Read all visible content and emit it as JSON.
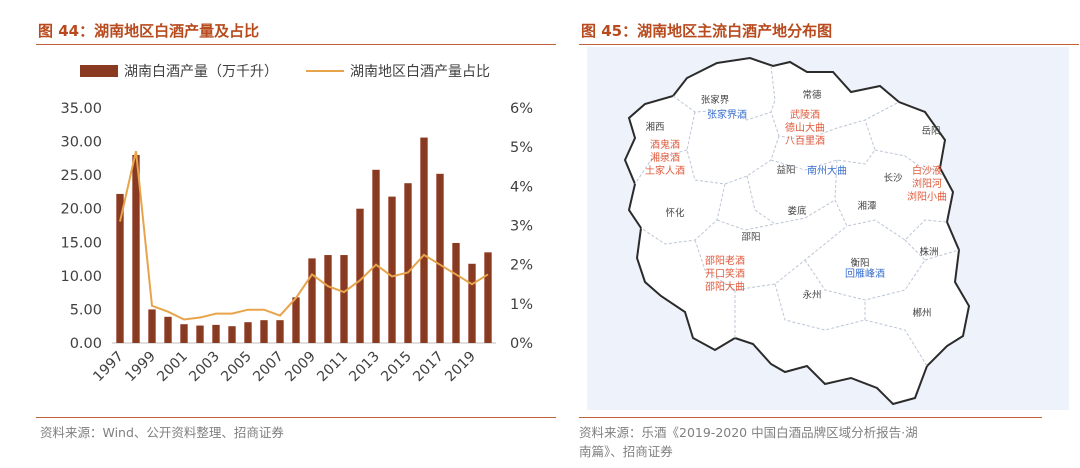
{
  "left_panel": {
    "title": "图 44：湖南地区白酒产量及占比",
    "source": "资料来源：Wind、公开资料整理、招商证券"
  },
  "right_panel": {
    "title": "图 45：湖南地区主流白酒产地分布图",
    "source_line1": "资料来源：乐酒《2019-2020 中国白酒品牌区域分析报告·湖",
    "source_line2": "南篇》、招商证券",
    "map": {
      "places": [
        {
          "name": "张家界",
          "brands": [
            "张家界酒"
          ]
        },
        {
          "name": "常德",
          "brands": [
            "武陵酒",
            "德山大曲",
            "八百里酒"
          ]
        },
        {
          "name": "湘西",
          "brands": [
            "酒鬼酒",
            "湘泉酒",
            "土家人酒"
          ]
        },
        {
          "name": "岳阳",
          "brands": []
        },
        {
          "name": "益阳",
          "brands": [
            "南州大曲"
          ]
        },
        {
          "name": "长沙",
          "brands": [
            "白沙液",
            "浏阳河",
            "浏阳小曲"
          ]
        },
        {
          "name": "怀化",
          "brands": []
        },
        {
          "name": "娄底",
          "brands": []
        },
        {
          "name": "湘潭",
          "brands": []
        },
        {
          "name": "邵阳",
          "brands": [
            "邵阳老酒",
            "开口笑酒",
            "邵阳大曲"
          ]
        },
        {
          "name": "株洲",
          "brands": []
        },
        {
          "name": "衡阳",
          "brands": [
            "回雁峰酒"
          ]
        },
        {
          "name": "永州",
          "brands": []
        },
        {
          "name": "郴州",
          "brands": []
        }
      ],
      "colors": {
        "red_brand": "#e05a3c",
        "blue_brand": "#3a6fd0",
        "place": "#444444"
      }
    }
  },
  "chart_data": {
    "type": "bar",
    "categories": [
      "1997",
      "1998",
      "1999",
      "2000",
      "2001",
      "2002",
      "2003",
      "2004",
      "2005",
      "2006",
      "2007",
      "2008",
      "2009",
      "2010",
      "2011",
      "2012",
      "2013",
      "2014",
      "2015",
      "2016",
      "2017",
      "2018",
      "2019",
      "2020"
    ],
    "x_tick_labels": [
      "1997",
      "1999",
      "2001",
      "2003",
      "2005",
      "2007",
      "2009",
      "2011",
      "2013",
      "2015",
      "2017",
      "2019"
    ],
    "series": [
      {
        "name": "湖南白酒产量（万千升）",
        "type": "bar",
        "axis": "left",
        "color": "#8b3a22",
        "values": [
          22.2,
          28.0,
          5.0,
          3.9,
          2.8,
          2.6,
          2.7,
          2.5,
          3.1,
          3.4,
          3.4,
          6.8,
          12.6,
          13.1,
          13.1,
          20.0,
          25.8,
          21.8,
          23.8,
          30.6,
          25.2,
          14.9,
          11.8,
          13.5
        ]
      },
      {
        "name": "湖南地区白酒产量占比",
        "type": "line",
        "axis": "right",
        "color": "#e8a44a",
        "values": [
          3.1,
          4.9,
          0.95,
          0.8,
          0.6,
          0.65,
          0.75,
          0.75,
          0.85,
          0.85,
          0.7,
          1.15,
          1.75,
          1.45,
          1.3,
          1.6,
          2.0,
          1.7,
          1.8,
          2.25,
          2.0,
          1.75,
          1.5,
          1.75
        ]
      }
    ],
    "y_left": {
      "min": 0,
      "max": 35,
      "step": 5,
      "tick_labels": [
        "0.00",
        "5.00",
        "10.00",
        "15.00",
        "20.00",
        "25.00",
        "30.00",
        "35.00"
      ]
    },
    "y_right": {
      "min": 0,
      "max": 6,
      "step": 1,
      "tick_labels": [
        "0%",
        "1%",
        "2%",
        "3%",
        "4%",
        "5%",
        "6%"
      ]
    },
    "legend": "top"
  }
}
